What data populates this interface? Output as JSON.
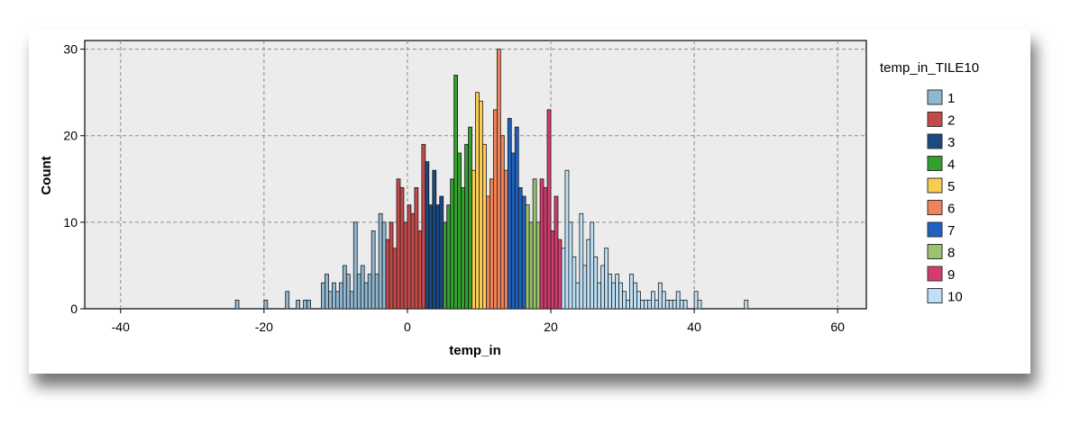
{
  "chart_data": {
    "type": "bar",
    "title": "",
    "xlabel": "temp_in",
    "ylabel": "Count",
    "xlim": [
      -45,
      64
    ],
    "ylim": [
      0,
      31
    ],
    "x_ticks": [
      -40,
      -20,
      0,
      20,
      40,
      60
    ],
    "y_ticks": [
      0,
      10,
      20,
      30
    ],
    "grid": true,
    "legend_position": "right",
    "legend_title": "temp_in_TILE10",
    "bin_width": 0.5,
    "series": [
      {
        "name": "1",
        "color": "#90b7d2",
        "x": [
          -24,
          -20,
          -17,
          -15.5,
          -14.5,
          -14,
          -12,
          -11.5,
          -11,
          -10.5,
          -10,
          -9.5,
          -9,
          -8.5,
          -8,
          -7.5,
          -7,
          -6.5,
          -6,
          -5.5,
          -5,
          -4.5,
          -4,
          -3.5
        ],
        "values": [
          1,
          1,
          2,
          1,
          1,
          1,
          3,
          4,
          2,
          3,
          2,
          3,
          5,
          4,
          2,
          10,
          4,
          5,
          3,
          4,
          9,
          4,
          11,
          10
        ]
      },
      {
        "name": "2",
        "color": "#c44a4a",
        "x": [
          -3,
          -2.5,
          -2,
          -1.5,
          -1,
          -0.5,
          0,
          0.5,
          1,
          1.5,
          2
        ],
        "values": [
          8,
          10,
          7,
          15,
          14,
          10,
          12,
          11,
          14,
          9,
          19
        ]
      },
      {
        "name": "3",
        "color": "#1a4a82",
        "x": [
          2.5,
          3,
          3.5,
          4,
          4.5
        ],
        "values": [
          17,
          12,
          16,
          12,
          13
        ]
      },
      {
        "name": "4",
        "color": "#32a02c",
        "x": [
          5,
          5.5,
          6,
          6.5,
          7,
          7.5,
          8,
          8.5
        ],
        "values": [
          10,
          12,
          15,
          27,
          18,
          14,
          19,
          21
        ]
      },
      {
        "name": "5",
        "color": "#fbcc54",
        "x": [
          9,
          9.5,
          10,
          10.5
        ],
        "values": [
          16,
          25,
          24,
          19
        ]
      },
      {
        "name": "6",
        "color": "#f0845a",
        "x": [
          11,
          11.5,
          12,
          12.5,
          13,
          13.5
        ],
        "values": [
          13,
          15,
          23,
          30,
          20,
          16
        ]
      },
      {
        "name": "7",
        "color": "#1f62c1",
        "x": [
          14,
          14.5,
          15,
          15.5,
          16
        ],
        "values": [
          22,
          18,
          21,
          14,
          13
        ]
      },
      {
        "name": "8",
        "color": "#9cc46e",
        "x": [
          16.5,
          17,
          17.5,
          18
        ],
        "values": [
          12,
          10,
          15,
          10
        ]
      },
      {
        "name": "9",
        "color": "#d43c6e",
        "x": [
          18.5,
          19,
          19.5,
          20,
          20.5,
          21
        ],
        "values": [
          15,
          14,
          23,
          9,
          13,
          8
        ]
      },
      {
        "name": "10",
        "color": "#bde0f6",
        "x": [
          21.5,
          22,
          22.5,
          23,
          23.5,
          24,
          24.5,
          25,
          25.5,
          26,
          26.5,
          27,
          27.5,
          28,
          28.5,
          29,
          29.5,
          30,
          30.5,
          31,
          31.5,
          32,
          32.5,
          33,
          33.5,
          34,
          34.5,
          35,
          35.5,
          36,
          36.5,
          37,
          37.5,
          38,
          38.5,
          40,
          40.5,
          47
        ],
        "values": [
          7,
          16,
          10,
          6,
          3,
          11,
          5,
          8,
          10,
          6,
          3,
          5,
          7,
          4,
          3,
          4,
          3,
          2,
          1,
          4,
          3,
          2,
          1,
          1,
          1,
          2,
          1,
          3,
          2,
          1,
          1,
          1,
          2,
          1,
          1,
          2,
          1,
          1
        ]
      }
    ]
  }
}
